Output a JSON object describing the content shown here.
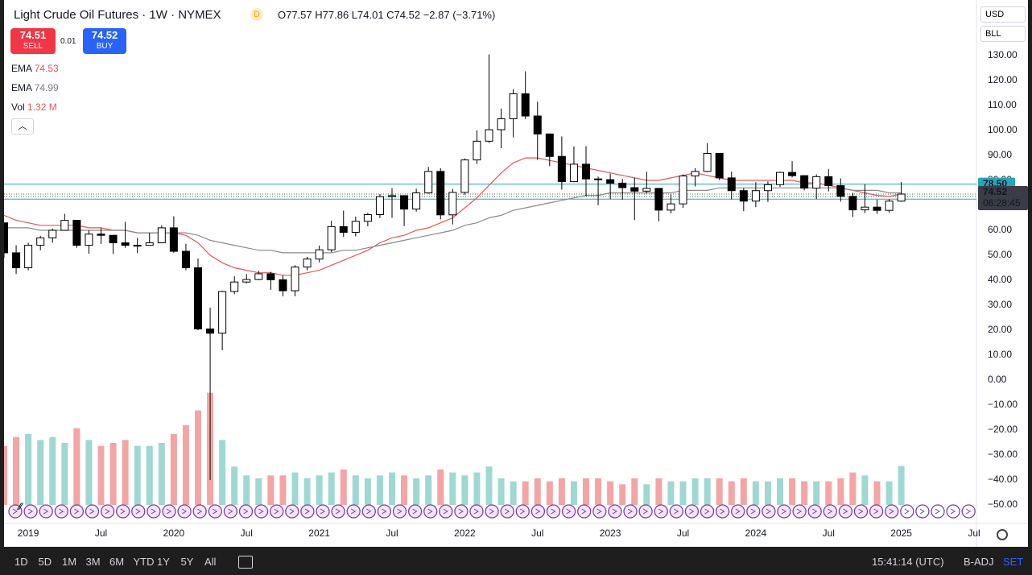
{
  "chart_data": {
    "type": "candlestick",
    "title": "Light Crude Oil Futures · 1W · NYMEX",
    "x": [
      "2018-11",
      "2018-12",
      "2019-01",
      "2019-02",
      "2019-03",
      "2019-04",
      "2019-05",
      "2019-06",
      "2019-07",
      "2019-08",
      "2019-09",
      "2019-10",
      "2019-11",
      "2019-12",
      "2020-01",
      "2020-02",
      "2020-03",
      "2020-04",
      "2020-05",
      "2020-06",
      "2020-07",
      "2020-08",
      "2020-09",
      "2020-10",
      "2020-11",
      "2020-12",
      "2021-01",
      "2021-02",
      "2021-03",
      "2021-04",
      "2021-05",
      "2021-06",
      "2021-07",
      "2021-08",
      "2021-09",
      "2021-10",
      "2021-11",
      "2021-12",
      "2022-01",
      "2022-02",
      "2022-03",
      "2022-04",
      "2022-05",
      "2022-06",
      "2022-07",
      "2022-08",
      "2022-09",
      "2022-10",
      "2022-11",
      "2022-12",
      "2023-01",
      "2023-02",
      "2023-03",
      "2023-04",
      "2023-05",
      "2023-06",
      "2023-07",
      "2023-08",
      "2023-09",
      "2023-10",
      "2023-11",
      "2023-12",
      "2024-01",
      "2024-02",
      "2024-03",
      "2024-04",
      "2024-05",
      "2024-06",
      "2024-07",
      "2024-08",
      "2024-09",
      "2024-10",
      "2024-11",
      "2024-12",
      "2025-01"
    ],
    "open": [
      63,
      51,
      45,
      54,
      57,
      60,
      64,
      54,
      58.5,
      58,
      55,
      54,
      54,
      55,
      61,
      51.6,
      45,
      20.5,
      18.8,
      35.5,
      39.3,
      40.3,
      42.6,
      40.2,
      35.8,
      45.3,
      48.5,
      52.2,
      61.5,
      59.2,
      63.6,
      66.3,
      73.5,
      73.9,
      68.5,
      75,
      83.6,
      66.2,
      75.2,
      88.2,
      95.7,
      100.3,
      104.7,
      114.7,
      105.8,
      98.6,
      89.6,
      79.5,
      86.5,
      80.6,
      80.3,
      78.9,
      77.1,
      75.7,
      76.8,
      68.1,
      70.6,
      81.8,
      83.6,
      90.8,
      81,
      75.9,
      71.7,
      75.9,
      78.3,
      83.2,
      81.9,
      76.9,
      81.5,
      77.9,
      73.6,
      68.2,
      69.3,
      68,
      71.7
    ],
    "high": [
      63,
      54,
      55,
      57.8,
      60.7,
      66.6,
      64,
      60,
      60.9,
      58,
      63.4,
      57,
      59,
      62,
      65.6,
      54.6,
      48.7,
      29,
      35.8,
      41.6,
      42.5,
      43.8,
      43.4,
      41.9,
      46,
      49.4,
      53.9,
      63.8,
      67.9,
      65.5,
      67,
      74.5,
      76.9,
      74,
      76.7,
      85.4,
      84.9,
      76.6,
      88.8,
      100,
      130.5,
      108.8,
      116.6,
      123.7,
      111.5,
      98.8,
      97.6,
      93.6,
      93.7,
      81.5,
      82.7,
      80.6,
      81,
      83.5,
      76.9,
      74.4,
      82.4,
      84.9,
      95,
      90.9,
      83.5,
      76.9,
      79.3,
      79.6,
      83.5,
      87.7,
      82.1,
      82.4,
      84.5,
      80.8,
      75,
      78.5,
      72.3,
      72.5,
      79.3
    ],
    "low": [
      49,
      42.5,
      44,
      52,
      55,
      60,
      53,
      50.6,
      54.5,
      50.5,
      53,
      50.9,
      54,
      55,
      51,
      44,
      20,
      -40,
      12,
      34.4,
      38.7,
      40,
      36.1,
      33.6,
      33.6,
      44,
      47.2,
      51.3,
      57.3,
      57.6,
      61.6,
      64.9,
      65,
      61.7,
      67.5,
      74.7,
      64.4,
      62.4,
      74.3,
      86.6,
      95,
      92.9,
      97.2,
      104.6,
      88.2,
      85.7,
      76.3,
      79.3,
      73.6,
      70.1,
      72.5,
      72.3,
      64.1,
      74.8,
      63.6,
      66.8,
      69,
      77.6,
      83.3,
      80.1,
      72.4,
      67.7,
      69.3,
      71.4,
      77.4,
      81.2,
      76,
      72.5,
      75.6,
      71.5,
      65.3,
      66.9,
      66.6,
      67,
      71.4
    ],
    "close": [
      51,
      45,
      54,
      57,
      60,
      64,
      54,
      58.5,
      58,
      55,
      54,
      54,
      55,
      61,
      51.6,
      45,
      20.5,
      18.8,
      35.5,
      39.3,
      40.3,
      42.6,
      40.2,
      35.8,
      45.3,
      48.5,
      52.2,
      61.5,
      59.2,
      63.6,
      66.3,
      73.5,
      73.9,
      68.5,
      75,
      83.6,
      66.2,
      75.2,
      88.2,
      95.7,
      100.3,
      104.7,
      114.7,
      105.8,
      98.6,
      89.6,
      79.5,
      86.5,
      80.6,
      80.3,
      78.9,
      77.1,
      75.7,
      76.8,
      68.1,
      70.6,
      81.8,
      83.6,
      90.8,
      81,
      75.9,
      71.7,
      75.9,
      78.3,
      83.2,
      81.9,
      76.9,
      81.5,
      77.9,
      73.6,
      68.2,
      69.3,
      68,
      71.7,
      74.52
    ],
    "series": [
      {
        "name": "EMA",
        "color": "#e0575a",
        "values": [
          66,
          64,
          63,
          62,
          62,
          62,
          62,
          61,
          61,
          60,
          60,
          59,
          59,
          59,
          59,
          58,
          55,
          50,
          47,
          45,
          44,
          43,
          43,
          42,
          42,
          43,
          44,
          46,
          48,
          50,
          52,
          55,
          57,
          58,
          60,
          61,
          63,
          65,
          69,
          73,
          78,
          83,
          87,
          89,
          89,
          88,
          87,
          86,
          85,
          84,
          83,
          82,
          81,
          80,
          80,
          81,
          82,
          83,
          82,
          81,
          80,
          80,
          80,
          80,
          80,
          80,
          79,
          79,
          78,
          77,
          76,
          75,
          74,
          73.6,
          74.53
        ]
      },
      {
        "name": "EMA",
        "color": "#8a8a8a",
        "values": [
          61,
          61,
          61,
          60,
          60,
          60,
          60,
          60,
          60,
          60,
          60,
          59,
          59,
          59,
          59,
          59,
          58,
          56,
          55,
          54,
          53,
          52,
          52,
          51,
          51,
          51,
          51,
          51,
          52,
          52,
          53,
          54,
          55,
          56,
          57,
          58,
          59,
          60,
          62,
          63,
          65,
          66,
          68,
          69,
          70,
          71,
          72,
          73,
          74,
          74,
          75,
          75,
          75,
          75,
          75,
          75,
          76,
          76,
          76,
          77,
          77,
          77,
          77,
          77,
          77,
          77,
          77,
          77,
          77,
          77,
          76,
          76,
          76,
          75,
          74.99
        ]
      }
    ],
    "volume": {
      "name": "Vol",
      "values": [
        2.0,
        2.3,
        2.4,
        2.2,
        2.3,
        2.1,
        2.6,
        2.2,
        2.0,
        2.1,
        2.2,
        2.0,
        2.0,
        2.1,
        2.4,
        2.7,
        3.2,
        3.8,
        2.2,
        1.3,
        1.0,
        0.9,
        1.0,
        1.0,
        1.1,
        0.9,
        1.0,
        1.1,
        1.2,
        1.0,
        0.9,
        1.0,
        1.1,
        1.0,
        0.9,
        1.0,
        1.2,
        1.1,
        1.0,
        1.1,
        1.3,
        0.9,
        0.8,
        0.8,
        0.9,
        0.8,
        0.9,
        0.8,
        0.9,
        0.9,
        0.8,
        0.7,
        0.9,
        0.7,
        0.9,
        0.8,
        0.8,
        0.9,
        0.9,
        0.9,
        0.8,
        0.9,
        0.8,
        0.8,
        0.9,
        0.9,
        0.8,
        0.8,
        0.8,
        0.9,
        1.1,
        1.0,
        0.8,
        0.8,
        1.32
      ],
      "lim": [
        0,
        6
      ],
      "legend_label": "1.32 M"
    },
    "xlim": [
      "2018-11",
      "2025-07"
    ],
    "xticks": [
      {
        "value": "2019-01",
        "label": "2019"
      },
      {
        "value": "2019-07",
        "label": "Jul"
      },
      {
        "value": "2020-01",
        "label": "2020"
      },
      {
        "value": "2020-07",
        "label": "Jul"
      },
      {
        "value": "2021-01",
        "label": "2021"
      },
      {
        "value": "2021-07",
        "label": "Jul"
      },
      {
        "value": "2022-01",
        "label": "2022"
      },
      {
        "value": "2022-07",
        "label": "Jul"
      },
      {
        "value": "2023-01",
        "label": "2023"
      },
      {
        "value": "2023-07",
        "label": "Jul"
      },
      {
        "value": "2024-01",
        "label": "2024"
      },
      {
        "value": "2024-07",
        "label": "Jul"
      },
      {
        "value": "2025-01",
        "label": "2025"
      },
      {
        "value": "2025-07",
        "label": "Jul"
      }
    ],
    "ylim": [
      -66.45,
      150.65
    ],
    "yticks": [
      {
        "value": 130,
        "label": "130.00"
      },
      {
        "value": 120,
        "label": "120.00"
      },
      {
        "value": 110,
        "label": "110.00"
      },
      {
        "value": 100,
        "label": "100.00"
      },
      {
        "value": 90,
        "label": "90.00"
      },
      {
        "value": 80,
        "label": "80.00"
      },
      {
        "value": 70,
        "label": "70.00"
      },
      {
        "value": 60,
        "label": "60.00"
      },
      {
        "value": 50,
        "label": "50.00"
      },
      {
        "value": 40,
        "label": "40.00"
      },
      {
        "value": 30,
        "label": "30.00"
      },
      {
        "value": 20,
        "label": "20.00"
      },
      {
        "value": 10,
        "label": "10.00"
      },
      {
        "value": 0,
        "label": "0.00"
      },
      {
        "value": -10,
        "label": "−10.00"
      },
      {
        "value": -20,
        "label": "−20.00"
      },
      {
        "value": -30,
        "label": "−30.00"
      },
      {
        "value": -40,
        "label": "−40.00"
      },
      {
        "value": -50,
        "label": "−50.00"
      }
    ],
    "grid": false,
    "price_lines": [
      {
        "value": 78.5,
        "label": "78.50",
        "color": "#22a8b8"
      },
      {
        "value": 72.5,
        "label": "72.50",
        "color": "#22a8b8"
      }
    ],
    "last_price": {
      "value": 74.52,
      "label": "74.52",
      "countdown": "06:28:45"
    }
  },
  "ui": {
    "badge": "D",
    "ohlc": "O77.57 H77.86 L74.01 C74.52 −2.87 (−3.71%)",
    "sell": {
      "price": "74.51",
      "label": "SELL"
    },
    "spread": "0.01",
    "buy": {
      "price": "74.52",
      "label": "BUY"
    },
    "currency": "USD",
    "unit": "BLL",
    "ranges": [
      "1D",
      "5D",
      "1M",
      "3M",
      "6M",
      "YTD",
      "1Y",
      "5Y",
      "All"
    ],
    "clock": "15:41:14 (UTC)",
    "adj": "B-ADJ",
    "set": "SET"
  }
}
